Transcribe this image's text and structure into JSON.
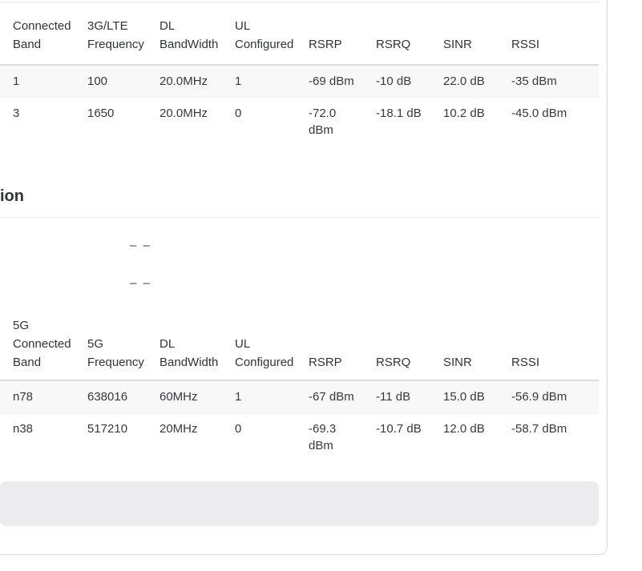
{
  "panel": {
    "section_heading_visible_text": "ion"
  },
  "lte_table": {
    "headers": [
      "Connected Band",
      "3G/LTE Frequency",
      "DL BandWidth",
      "UL Configured",
      "RSRP",
      "RSRQ",
      "SINR",
      "RSSI"
    ],
    "rows": [
      [
        "1",
        "100",
        "20.0MHz",
        "1",
        "-69 dBm",
        "-10 dB",
        "22.0 dB",
        "-35 dBm"
      ],
      [
        "3",
        "1650",
        "20.0MHz",
        "0",
        "-72.0 dBm",
        "-18.1 dB",
        "10.2 dB",
        "-45.0 dBm"
      ]
    ]
  },
  "status_values": {
    "row1": "– –",
    "row2": "– –"
  },
  "nr_table": {
    "headers": [
      "5G Connected Band",
      "5G Frequency",
      "DL BandWidth",
      "UL Configured",
      "RSRP",
      "RSRQ",
      "SINR",
      "RSSI"
    ],
    "rows": [
      [
        "n78",
        "638016",
        "60MHz",
        "1",
        "-67 dBm",
        "-11 dB",
        "15.0 dB",
        "-56.9 dBm"
      ],
      [
        "n38",
        "517210",
        "20MHz",
        "0",
        "-69.3 dBm",
        "-10.7 dB",
        "12.0 dB",
        "-58.7 dBm"
      ]
    ]
  },
  "colors": {
    "row_stripe": "#f8f8f9",
    "header_divider": "#d8dadc",
    "row_divider": "#ebedef",
    "card_border": "#d9dbdd",
    "action_bar": "#ececee"
  }
}
